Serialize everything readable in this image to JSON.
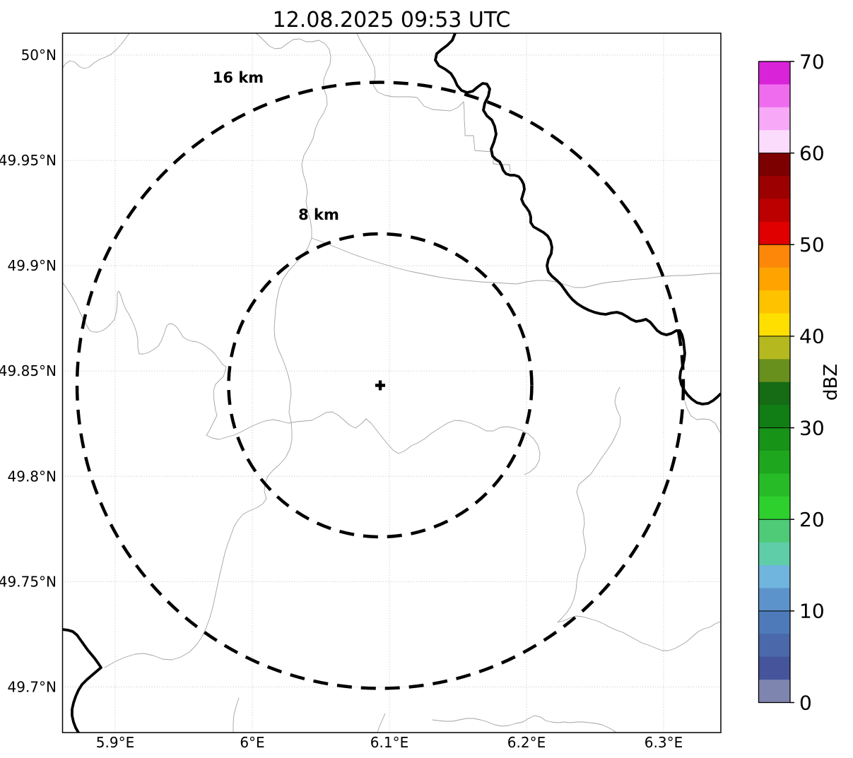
{
  "title": "12.08.2025 09:53 UTC",
  "map": {
    "lon_ticks": [
      {
        "label": "5.9°E",
        "value": 5.9
      },
      {
        "label": "6°E",
        "value": 6.0
      },
      {
        "label": "6.1°E",
        "value": 6.1
      },
      {
        "label": "6.2°E",
        "value": 6.2
      },
      {
        "label": "6.3°E",
        "value": 6.3
      }
    ],
    "lat_ticks": [
      {
        "label": "50°N",
        "value": 50.0
      },
      {
        "label": "49.95°N",
        "value": 49.95
      },
      {
        "label": "49.9°N",
        "value": 49.9
      },
      {
        "label": "49.85°N",
        "value": 49.85
      },
      {
        "label": "49.8°N",
        "value": 49.8
      },
      {
        "label": "49.75°N",
        "value": 49.75
      },
      {
        "label": "49.7°N",
        "value": 49.7
      }
    ],
    "range_rings": [
      {
        "label": "16 km",
        "radius_km": 16
      },
      {
        "label": "8 km",
        "radius_km": 8
      }
    ],
    "center_marker_symbol": "+"
  },
  "colorbar": {
    "label": "dBZ",
    "range": [
      0,
      70
    ],
    "band_step_dbz": 2.5,
    "ticks": [
      {
        "label": "70",
        "value": 70
      },
      {
        "label": "60",
        "value": 60
      },
      {
        "label": "50",
        "value": 50
      },
      {
        "label": "40",
        "value": 40
      },
      {
        "label": "30",
        "value": 30
      },
      {
        "label": "20",
        "value": 20
      },
      {
        "label": "10",
        "value": 10
      },
      {
        "label": "0",
        "value": 0
      }
    ],
    "colors_top_to_bottom": [
      "#d823d8",
      "#ef6cef",
      "#f7a8f7",
      "#fcdcfc",
      "#7d0000",
      "#9c0000",
      "#bc0000",
      "#e00000",
      "#fc8708",
      "#ffa300",
      "#ffc200",
      "#ffdf00",
      "#b6b820",
      "#68901c",
      "#166c14",
      "#117d15",
      "#179317",
      "#1ea71e",
      "#27bc27",
      "#2ed02e",
      "#4fca77",
      "#5fcda8",
      "#70b5dd",
      "#5d93cb",
      "#4e7ab9",
      "#4a68aa",
      "#46549b",
      "#7e85ae"
    ]
  },
  "chart_data": {
    "type": "map",
    "title": "12.08.2025 09:53 UTC",
    "projection": "lat-lon",
    "lon_range": [
      5.862,
      6.342
    ],
    "lat_range": [
      49.678,
      50.01
    ],
    "grid": true,
    "radar_site": {
      "lon": 6.093,
      "lat": 49.843
    },
    "range_rings_km": [
      8,
      16
    ],
    "colorbar": {
      "label": "dBZ",
      "min": 0,
      "max": 70,
      "tick_step": 10,
      "band_step": 2.5
    },
    "observed_reflectivity": "none visible (empty radar field)"
  }
}
